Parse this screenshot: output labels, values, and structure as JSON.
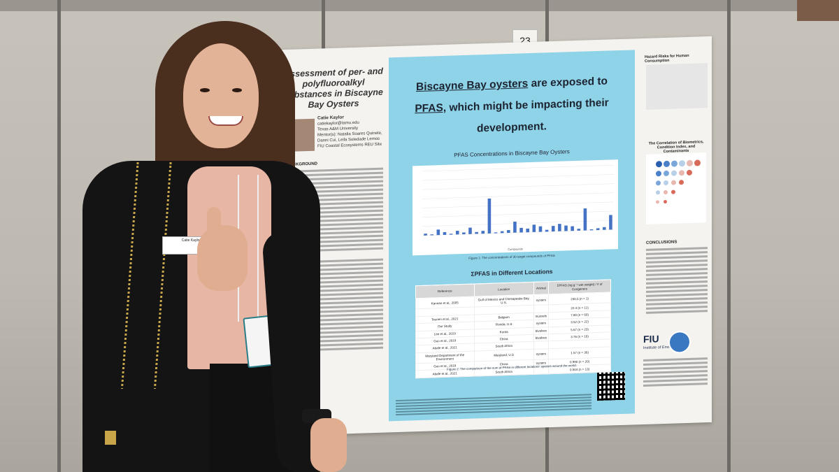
{
  "scene": {
    "booth_number": "23",
    "nametag_text": "Catie Kaylor"
  },
  "poster": {
    "title": "Assessment of per- and polyfluoroalkyl substances in Biscayne Bay Oysters",
    "author": {
      "name": "Catie Kaylor",
      "email": "catiekaylor@tamu.edu",
      "affiliation": "Texas A&M University",
      "mentors": "Mentor(s): Natalia Soares Quinete, Danni Cui, Leila Soledade Lemos",
      "site": "FIU Coastal Ecosystems REU Site"
    },
    "sections": {
      "background": "BACKGROUND",
      "conclusions": "CONCLUSIONS"
    },
    "headline": {
      "line1_link": "Biscayne Bay oysters",
      "line1_rest": " are exposed to",
      "line2_link": "PFAS,",
      "line2_rest": " which might be impacting their",
      "line3": "development."
    },
    "chart_title": "PFAS Concentrations in Biscayne Bay Oysters",
    "chart_caption": "Figure 1: The concentrations of 30 target compounds of PFAS",
    "table_title": "ΣPFAS in Different Locations",
    "table_caption": "Figure 2: The comparison of the sum of PFAS in different locations' species around the world.",
    "table": {
      "headers": [
        "Reference",
        "Location",
        "Animal",
        "ΣPFAS (ng g⁻¹ wet weight) / # of Congeners"
      ],
      "rows": [
        [
          "Kannan et al., 2005",
          "Gulf of Mexico and Chesapeake Bay, U.S.",
          "oysters",
          "240.5 (n = 1)"
        ],
        [
          "",
          "",
          "",
          "22.4 (n = 11)"
        ],
        [
          "Teunen et al., 2021",
          "Belgium",
          "mussels",
          "7.80 (n = 60)"
        ],
        [
          "Our Study",
          "Florida, U.S",
          "oysters",
          "3.52 (n = 22)"
        ],
        [
          "Lee et al., 2019",
          "Korea",
          "bivalves",
          "5.67 (n = 23)"
        ],
        [
          "Guo et al., 2019",
          "China",
          "bivalves",
          "3.76 (n = 16)"
        ],
        [
          "Abafe et al., 2021",
          "South Africa",
          "",
          ""
        ],
        [
          "Maryland Department of the Environment",
          "Maryland, U.S",
          "oysters",
          "1.57 (n = 36)"
        ],
        [
          "Guo et al., 2019",
          "China",
          "oysters",
          "0.990 (n = 20)"
        ],
        [
          "Abafe et al., 2021",
          "South Africa",
          "",
          "0.504 (n = 13)"
        ]
      ]
    },
    "right": {
      "hazard_title": "Hazard Risks for Human Consumption",
      "correlation_title": "The Correlation of Biometrics, Condition Index, and Contaminants",
      "logo_text": "FIU",
      "logo_sub": "Institute of Environment"
    }
  },
  "chart_data": {
    "type": "bar",
    "title": "PFAS Concentrations in Biscayne Bay Oysters",
    "xlabel": "Compounds",
    "ylabel": "",
    "values": [
      0.1,
      0.05,
      0.3,
      0.15,
      0.05,
      0.2,
      0.1,
      0.35,
      0.1,
      0.15,
      1.9,
      0.05,
      0.1,
      0.15,
      0.6,
      0.25,
      0.2,
      0.4,
      0.3,
      0.1,
      0.3,
      0.4,
      0.3,
      0.25,
      0.1,
      1.2,
      0.05,
      0.1,
      0.15,
      0.8
    ],
    "ylim": [
      0,
      3.5
    ]
  }
}
